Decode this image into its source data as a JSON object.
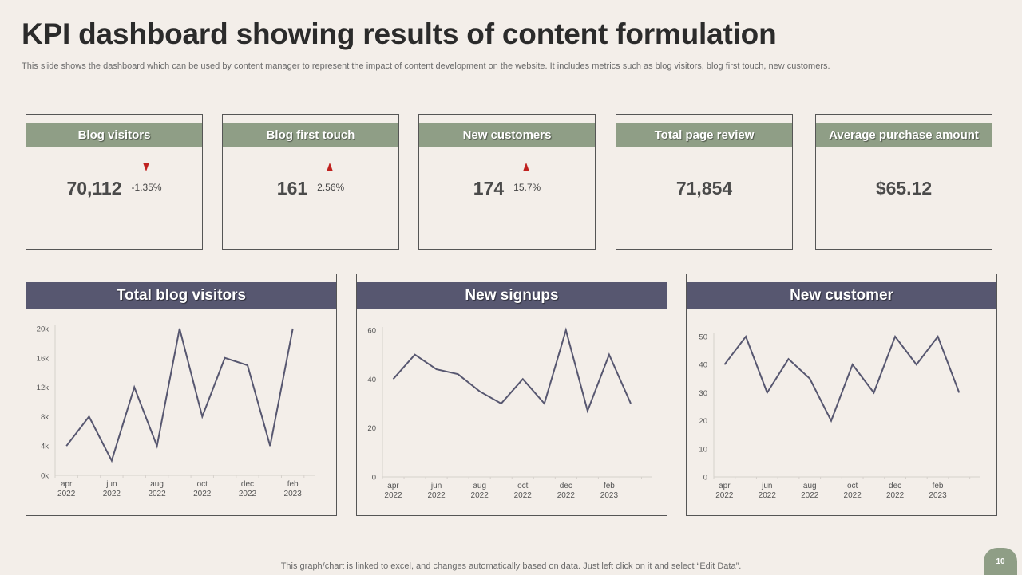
{
  "slide": {
    "title": "KPI dashboard showing results of content formulation",
    "subtitle": "This slide shows the dashboard which can be used by content manager to represent the impact of content development on the website. It includes metrics such as blog visitors, blog first touch, new customers.",
    "footer_note": "This graph/chart is linked to excel,  and changes automatically based on data. Just left click on it and select “Edit Data”.",
    "page_number": "10"
  },
  "colors": {
    "kpi_header": "#8f9e86",
    "chart_header": "#575770",
    "line": "#575770",
    "down_arrow": "#c0211f",
    "up_arrow": "#c0211f",
    "background": "#f3eee9"
  },
  "kpis": [
    {
      "label": "Blog visitors",
      "value": "70,112",
      "delta": "-1.35%",
      "trend": "down"
    },
    {
      "label": "Blog first touch",
      "value": "161",
      "delta": "2.56%",
      "trend": "up"
    },
    {
      "label": "New customers",
      "value": "174",
      "delta": "15.7%",
      "trend": "up"
    },
    {
      "label": "Total page review",
      "value": "71,854"
    },
    {
      "label": "Average purchase amount",
      "value": "$65.12"
    }
  ],
  "chart_data": [
    {
      "type": "line",
      "title": "Total blog visitors",
      "x_ticks": [
        "apr|2022",
        "jun|2022",
        "aug|2022",
        "oct|2022",
        "dec|2022",
        "feb|2023"
      ],
      "y_ticks": [
        "0k",
        "4k",
        "8k",
        "12k",
        "16k",
        "20k"
      ],
      "ylim": [
        0,
        20000
      ],
      "values": [
        4000,
        8000,
        2000,
        12000,
        4000,
        20000,
        8000,
        16000,
        15000,
        4000,
        20000
      ],
      "grid": false
    },
    {
      "type": "line",
      "title": "New signups",
      "x_ticks": [
        "apr|2022",
        "jun|2022",
        "aug|2022",
        "oct|2022",
        "dec|2022",
        "feb|2023"
      ],
      "y_ticks": [
        "0",
        "20",
        "40",
        "60"
      ],
      "ylim": [
        0,
        60
      ],
      "values": [
        40,
        50,
        44,
        42,
        35,
        30,
        40,
        30,
        60,
        27,
        50,
        30
      ],
      "grid": false
    },
    {
      "type": "line",
      "title": "New customer",
      "x_ticks": [
        "apr|2022",
        "jun|2022",
        "aug|2022",
        "oct|2022",
        "dec|2022",
        "feb|2023"
      ],
      "y_ticks": [
        "0",
        "10",
        "20",
        "30",
        "40",
        "50"
      ],
      "ylim": [
        0,
        50
      ],
      "values": [
        40,
        50,
        30,
        42,
        35,
        20,
        40,
        30,
        50,
        40,
        50,
        30
      ],
      "grid": false
    }
  ]
}
